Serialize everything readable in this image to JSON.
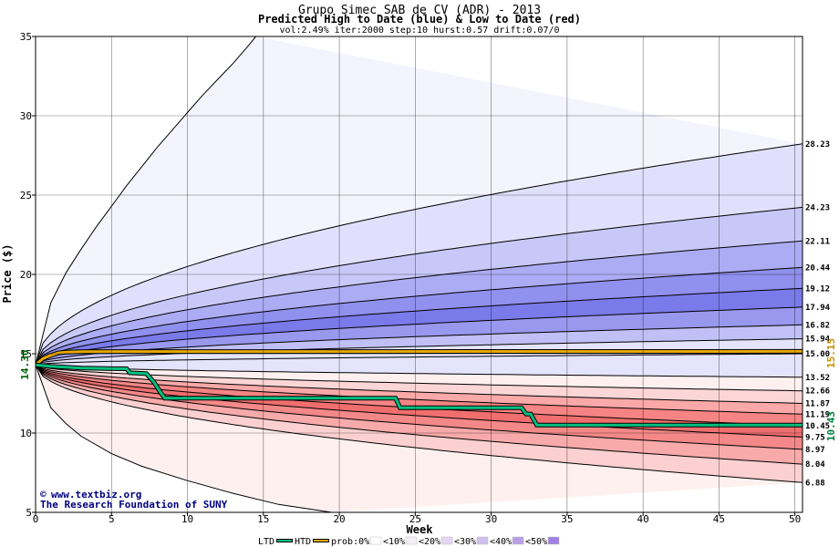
{
  "chart_data": {
    "type": "area",
    "title": "Grupo Simec SAB de CV (ADR) - 2013",
    "subtitle": "Predicted High to Date (blue) &  Low to Date (red)",
    "params": "vol:2.49% iter:2000 step:10 hurst:0.57 drift:0.07/0",
    "xlabel": "Week",
    "ylabel": "Price ($)",
    "xlim": [
      0,
      50.5
    ],
    "ylim": [
      5,
      35
    ],
    "x_ticks": [
      0,
      5,
      10,
      15,
      20,
      25,
      30,
      35,
      40,
      45,
      50
    ],
    "y_ticks": [
      5,
      10,
      15,
      20,
      25,
      30,
      35
    ],
    "grid": true,
    "start_price": "14.30",
    "htd_value": "15.15",
    "ltd_value": "10.43",
    "high_end_labels": [
      "28.23",
      "24.23",
      "22.11",
      "20.44",
      "19.12",
      "17.94",
      "16.82",
      "15.94",
      "15.00"
    ],
    "high_end_values": [
      28.23,
      24.23,
      22.11,
      20.44,
      19.12,
      17.94,
      16.82,
      15.94,
      15.0
    ],
    "low_end_labels": [
      "13.52",
      "12.66",
      "11.87",
      "11.19",
      "10.45",
      "9.75",
      "8.97",
      "8.04",
      "6.88"
    ],
    "low_end_values": [
      13.52,
      12.66,
      11.87,
      11.19,
      10.45,
      9.75,
      8.97,
      8.04,
      6.88
    ],
    "high_max_curve": {
      "x": [
        0,
        1,
        2,
        3,
        4,
        5,
        6,
        7,
        8,
        9,
        10,
        11,
        12,
        13,
        14,
        14.5
      ],
      "y": [
        14.3,
        18.2,
        20.1,
        21.6,
        23.0,
        24.3,
        25.6,
        26.8,
        28.0,
        29.1,
        30.2,
        31.3,
        32.3,
        33.3,
        34.4,
        35
      ]
    },
    "low_min_curve": {
      "x": [
        0,
        1,
        2,
        3,
        5,
        7,
        10,
        13,
        16,
        19.5
      ],
      "y": [
        14.3,
        11.6,
        10.6,
        9.8,
        8.7,
        7.9,
        7.0,
        6.2,
        5.5,
        5.0
      ]
    },
    "htd_series": {
      "name": "HTD",
      "x": [
        0,
        0.5,
        1,
        1.5,
        2,
        3,
        50.5
      ],
      "y": [
        14.3,
        14.7,
        14.9,
        15.05,
        15.1,
        15.13,
        15.15
      ]
    },
    "ltd_series": {
      "name": "LTD",
      "x": [
        0,
        1,
        2,
        3,
        4,
        5,
        6,
        6.2,
        7.3,
        7.8,
        8.2,
        8.5,
        23.7,
        24,
        32,
        32.3,
        32.6,
        33,
        50.5
      ],
      "y": [
        14.3,
        14.2,
        14.15,
        14.1,
        14.08,
        14.06,
        14.05,
        13.8,
        13.75,
        13.2,
        12.6,
        12.2,
        12.2,
        11.6,
        11.6,
        11.2,
        11.2,
        10.5,
        10.5
      ]
    },
    "band_colors": {
      "high": [
        "#f4f4ff",
        "#e0e0fc",
        "#c8c8f8",
        "#acacf4",
        "#9090ee",
        "#7a7aea",
        "#9898ee",
        "#c0c0f6",
        "#e4e4fc"
      ],
      "low": [
        "#fff0f0",
        "#fcd6d6",
        "#faa8a8",
        "#f68484",
        "#f06e6e",
        "#f48888",
        "#f8aaaa",
        "#fcd0d0",
        "#fff0f0"
      ]
    },
    "ltd_color": "#00c080",
    "htd_color": "#e6a800",
    "legend": {
      "items": [
        "LTD",
        "HTD",
        "prob:0%",
        "<10%",
        "<20%",
        "<30%",
        "<40%",
        "<50%"
      ],
      "swatch_colors": [
        "#00c080",
        "#e6a800",
        "#ffffff",
        "#f4eef8",
        "#e6d6f4",
        "#d0c0ee",
        "#b8a0e8",
        "#a080e0"
      ]
    },
    "credit_line1": "www.textbiz.org",
    "credit_line2": "The Research Foundation of SUNY"
  }
}
